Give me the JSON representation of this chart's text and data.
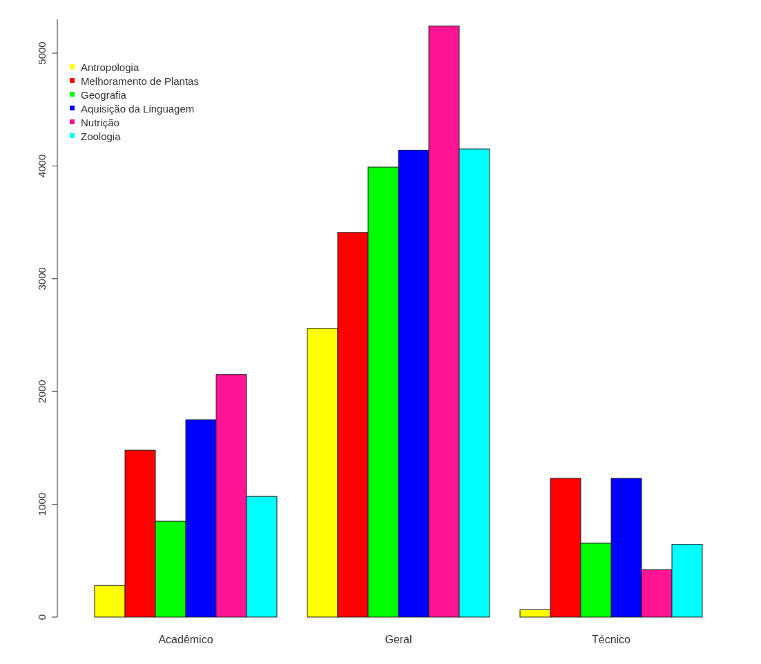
{
  "chart_data": {
    "type": "bar",
    "categories": [
      "Acadêmico",
      "Geral",
      "Técnico"
    ],
    "series": [
      {
        "name": "Antropologia",
        "color": "#ffff00",
        "values": [
          280,
          2560,
          65
        ]
      },
      {
        "name": "Melhoramento de Plantas",
        "color": "#ff0000",
        "values": [
          1480,
          3410,
          1230
        ]
      },
      {
        "name": "Geografia",
        "color": "#00ff00",
        "values": [
          850,
          3990,
          655
        ]
      },
      {
        "name": "Aquisição da Linguagem",
        "color": "#0000ff",
        "values": [
          1750,
          4140,
          1230
        ]
      },
      {
        "name": "Nutrição",
        "color": "#ff1493",
        "values": [
          2150,
          5240,
          420
        ]
      },
      {
        "name": "Zoologia",
        "color": "#00ffff",
        "values": [
          1070,
          4150,
          645
        ]
      }
    ],
    "ylim": [
      0,
      5300
    ],
    "yticks": [
      0,
      1000,
      2000,
      3000,
      4000,
      5000
    ],
    "legend": "top left"
  }
}
